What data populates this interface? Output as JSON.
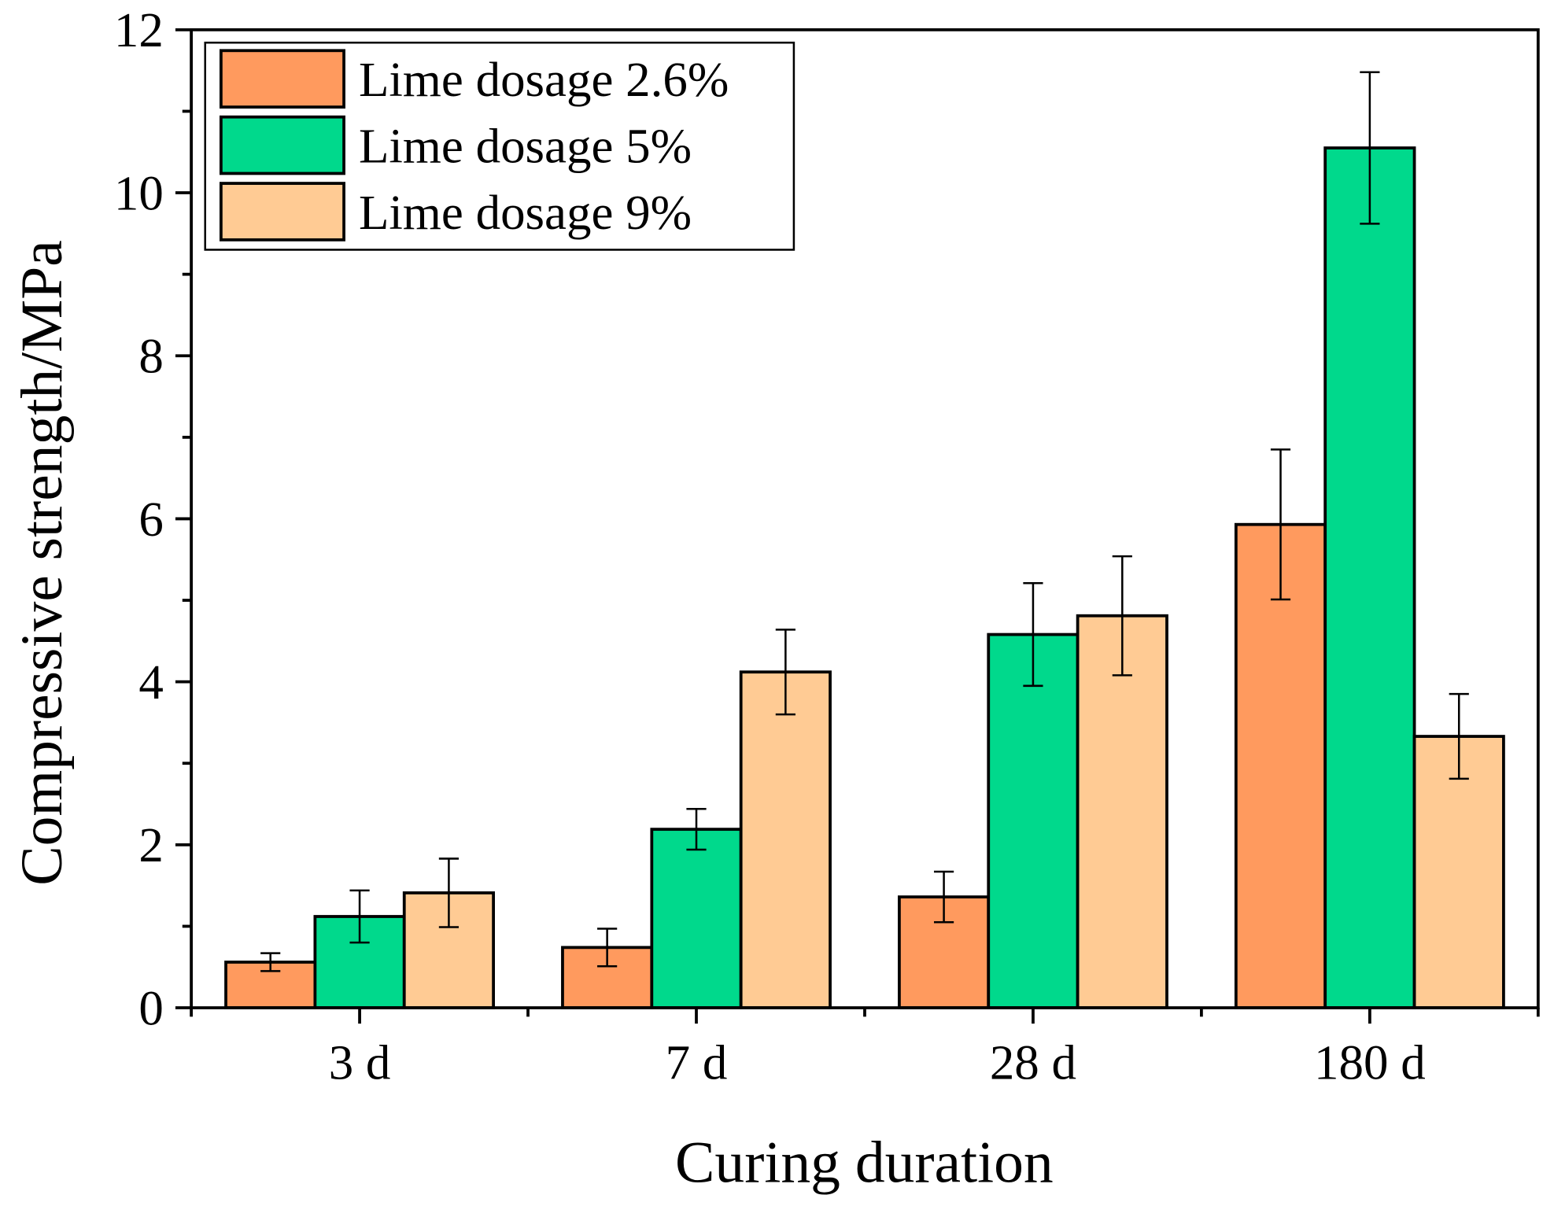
{
  "chart_data": {
    "type": "bar",
    "title": "",
    "xlabel": "Curing duration",
    "ylabel": "Compressive strength/MPa",
    "ylim": [
      0,
      12
    ],
    "yticks": [
      "0",
      "2",
      "4",
      "6",
      "8",
      "10",
      "12"
    ],
    "categories": [
      "3 d",
      "7 d",
      "28 d",
      "180 d"
    ],
    "legend_position": "top-left",
    "grid": false,
    "series": [
      {
        "name": "Lime dosage 2.6%",
        "color": "#FF9A5E",
        "values": [
          0.56,
          0.74,
          1.36,
          5.93
        ],
        "errors": [
          0.11,
          0.23,
          0.31,
          0.92
        ]
      },
      {
        "name": "Lime dosage 5%",
        "color": "#00D98C",
        "values": [
          1.12,
          2.19,
          4.58,
          10.55
        ],
        "errors": [
          0.32,
          0.25,
          0.63,
          0.93
        ]
      },
      {
        "name": "Lime dosage 9%",
        "color": "#FFCB94",
        "values": [
          1.41,
          4.12,
          4.81,
          3.33
        ],
        "errors": [
          0.42,
          0.52,
          0.73,
          0.52
        ]
      }
    ]
  }
}
